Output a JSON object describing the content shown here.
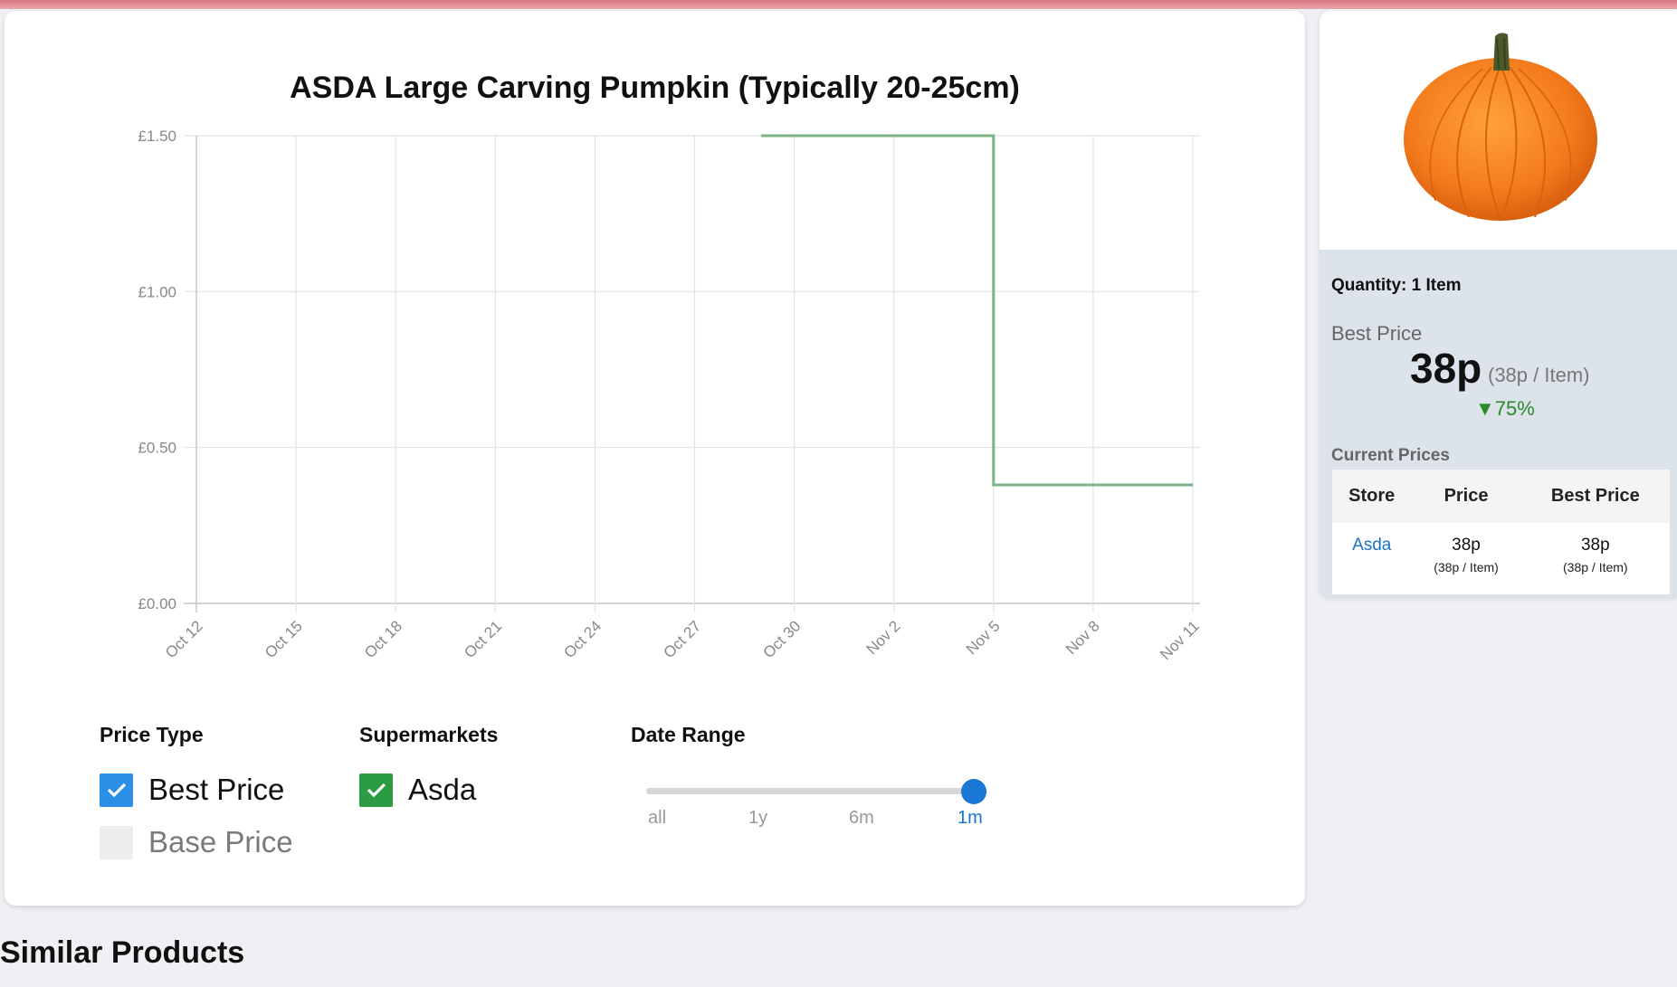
{
  "product": {
    "title": "ASDA Large Carving Pumpkin (Typically 20-25cm)"
  },
  "chart_data": {
    "type": "line",
    "title": "ASDA Large Carving Pumpkin (Typically 20-25cm)",
    "x_tick_labels": [
      "Oct 12",
      "Oct 15",
      "Oct 18",
      "Oct 21",
      "Oct 24",
      "Oct 27",
      "Oct 30",
      "Nov 2",
      "Nov 5",
      "Nov 8",
      "Nov 11"
    ],
    "y_tick_labels": [
      "£0.00",
      "£0.50",
      "£1.00",
      "£1.50"
    ],
    "ylim": [
      0,
      1.5
    ],
    "xlim": [
      "2023-10-12",
      "2023-11-11"
    ],
    "grid": true,
    "series": [
      {
        "step": true,
        "color": "#7eb386",
        "points": [
          {
            "x": "2023-10-29",
            "y": 1.5
          },
          {
            "x": "2023-11-05",
            "y": 1.5
          },
          {
            "x": "2023-11-05",
            "y": 0.38
          },
          {
            "x": "2023-11-11",
            "y": 0.38
          }
        ]
      }
    ]
  },
  "controls": {
    "price_type": {
      "heading": "Price Type",
      "options": [
        {
          "label": "Best Price",
          "checked": true
        },
        {
          "label": "Base Price",
          "checked": false
        }
      ]
    },
    "supermarkets": {
      "heading": "Supermarkets",
      "options": [
        {
          "label": "Asda",
          "checked": true
        }
      ]
    },
    "date_range": {
      "heading": "Date Range",
      "options": [
        "all",
        "1y",
        "6m",
        "1m"
      ],
      "selected": "1m"
    }
  },
  "sidebar": {
    "quantity": "Quantity: 1 Item",
    "best_price_label": "Best Price",
    "best_price": "38p",
    "best_price_unit": "(38p / Item)",
    "change": "▼75%",
    "current_prices_label": "Current Prices",
    "table": {
      "headers": [
        "Store",
        "Price",
        "Best Price"
      ],
      "rows": [
        {
          "store": "Asda",
          "price": "38p",
          "price_unit": "(38p / Item)",
          "best": "38p",
          "best_unit": "(38p / Item)"
        }
      ]
    }
  },
  "similar_heading": "Similar Products",
  "colors": {
    "accent_blue": "#1976d2",
    "checkbox_blue": "#2b8fe8",
    "checkbox_green": "#2c9c42",
    "price_drop_green": "#2a8a2a",
    "pumpkin_orange": "#f47b1c"
  }
}
